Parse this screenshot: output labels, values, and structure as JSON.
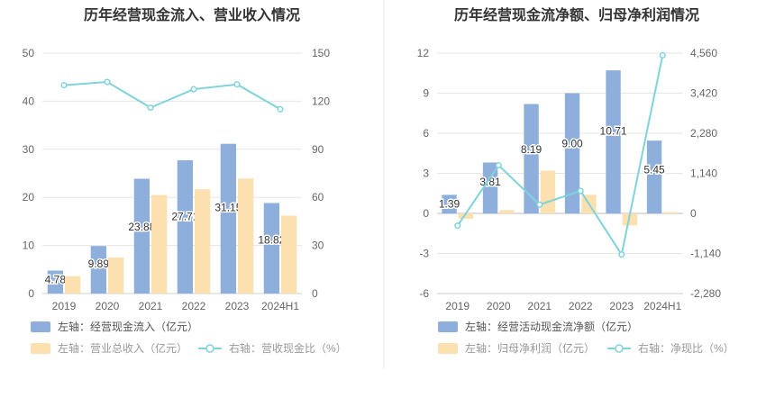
{
  "colors": {
    "bar_primary": "#8eafdb",
    "bar_secondary": "#fde0b0",
    "line": "#7fd3db",
    "axis_text": "#666666",
    "grid": "#e6e6e6",
    "title": "#333333"
  },
  "chart_data": [
    {
      "type": "bar",
      "title": "历年经营现金流入、营业收入情况",
      "categories": [
        "2019",
        "2020",
        "2021",
        "2022",
        "2023",
        "2024H1"
      ],
      "left_axis": {
        "ticks": [
          "0",
          "10",
          "20",
          "30",
          "40",
          "50"
        ],
        "ylim": [
          0,
          50
        ]
      },
      "right_axis": {
        "ticks": [
          "0",
          "30",
          "60",
          "90",
          "120",
          "150"
        ],
        "ylim": [
          0,
          150
        ]
      },
      "series": [
        {
          "name": "左轴：经营现金流入（亿元）",
          "axis": "left",
          "kind": "bar",
          "color": "#8eafdb",
          "values": [
            4.78,
            9.89,
            23.88,
            27.71,
            31.15,
            18.82
          ],
          "labels": [
            "4.78",
            "9.89",
            "23.88",
            "27.71",
            "31.15",
            "18.82"
          ]
        },
        {
          "name": "左轴：营业总收入（亿元）",
          "axis": "left",
          "kind": "bar",
          "color": "#fde0b0",
          "values": [
            3.6,
            7.5,
            20.5,
            21.7,
            23.9,
            16.2
          ]
        },
        {
          "name": "右轴：营收现金比（%）",
          "axis": "right",
          "kind": "line",
          "color": "#7fd3db",
          "values": [
            130.0,
            132.0,
            116.0,
            127.5,
            130.5,
            115.0
          ]
        }
      ],
      "grid": true,
      "legend_position": "bottom-left"
    },
    {
      "type": "bar",
      "title": "历年经营现金流净额、归母净利润情况",
      "categories": [
        "2019",
        "2020",
        "2021",
        "2022",
        "2023",
        "2024H1"
      ],
      "left_axis": {
        "ticks": [
          "-6",
          "-3",
          "0",
          "3",
          "6",
          "9",
          "12"
        ],
        "ylim": [
          -6,
          12
        ]
      },
      "right_axis": {
        "ticks": [
          "-2,280",
          "-1,140",
          "0",
          "1,140",
          "2,280",
          "3,420",
          "4,560"
        ],
        "ylim": [
          -2280,
          4560
        ]
      },
      "series": [
        {
          "name": "左轴：经营活动现金流净额（亿元）",
          "axis": "left",
          "kind": "bar",
          "color": "#8eafdb",
          "values": [
            1.39,
            3.81,
            8.19,
            9.0,
            10.71,
            5.45
          ],
          "labels": [
            "1.39",
            "3.81",
            "8.19",
            "9.00",
            "10.71",
            "5.45"
          ]
        },
        {
          "name": "左轴：归母净利润（亿元）",
          "axis": "left",
          "kind": "bar",
          "color": "#fde0b0",
          "values": [
            -0.4,
            0.25,
            3.2,
            1.4,
            -0.9,
            0.1
          ]
        },
        {
          "name": "右轴：净现比（%）",
          "axis": "right",
          "kind": "line",
          "color": "#7fd3db",
          "values": [
            -350,
            1370,
            250,
            640,
            -1170,
            4500
          ]
        }
      ],
      "grid": true,
      "legend_position": "bottom-left"
    }
  ]
}
